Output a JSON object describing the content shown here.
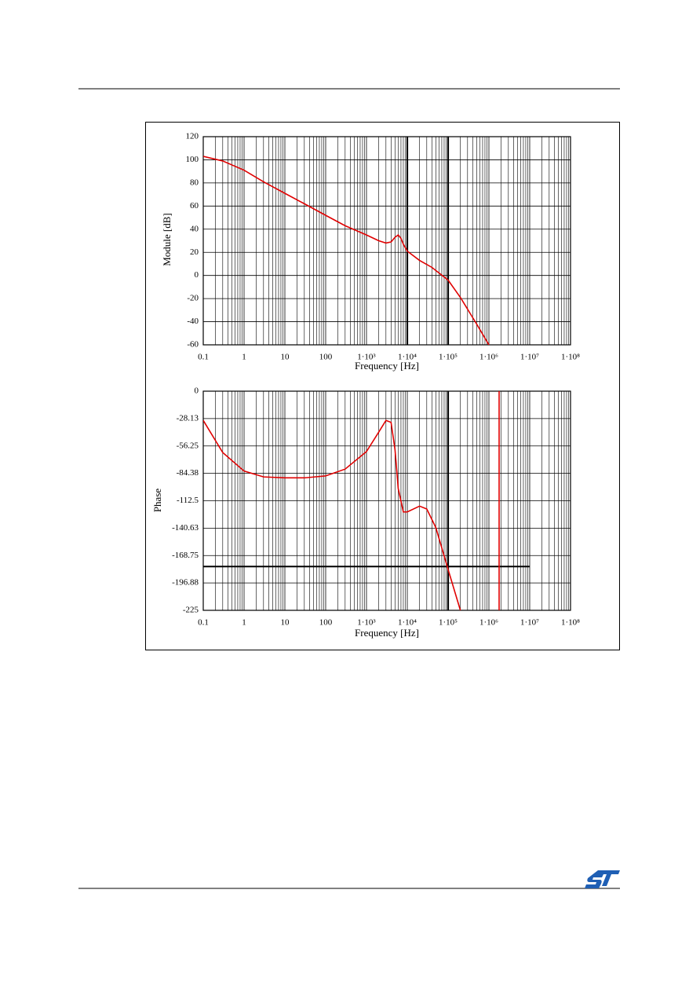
{
  "chart_data": [
    {
      "type": "line",
      "ylabel": "Module [dB]",
      "xlabel": "Frequency [Hz]",
      "log_x": true,
      "grid": true,
      "minor_grid": true,
      "xlim": [
        0.1,
        100000000
      ],
      "ylim": [
        -60,
        120
      ],
      "xticks": [
        0.1,
        1,
        10,
        100,
        {
          "value": 1000,
          "label": "1·10³"
        },
        {
          "value": 10000,
          "label": "1·10⁴"
        },
        {
          "value": 100000,
          "label": "1·10⁵"
        },
        {
          "value": 1000000,
          "label": "1·10⁶"
        },
        {
          "value": 10000000,
          "label": "1·10⁷"
        },
        {
          "value": 100000000,
          "label": "1·10⁸"
        }
      ],
      "yticks": [
        -60,
        -40,
        -20,
        0,
        20,
        40,
        60,
        80,
        100,
        120
      ],
      "emphasis_x": [
        10000,
        100000
      ],
      "x": [
        0.1,
        0.3,
        1,
        3,
        10,
        30,
        100,
        300,
        1000,
        2000,
        3000,
        4000,
        5000,
        6000,
        7000,
        8000,
        10000,
        20000,
        40000,
        100000,
        200000,
        500000,
        1000000
      ],
      "series": [
        {
          "color": "#e00000",
          "values": [
            103,
            99,
            91,
            81,
            71,
            62,
            52,
            43,
            35,
            30,
            28,
            29,
            33,
            35,
            32,
            27,
            21,
            13,
            7,
            -4,
            -19,
            -42,
            -60
          ]
        }
      ]
    },
    {
      "type": "line",
      "ylabel": "Phase",
      "xlabel": "Frequency [Hz]",
      "log_x": true,
      "grid": true,
      "minor_grid": true,
      "xlim": [
        0.1,
        100000000
      ],
      "ylim": [
        -225,
        0
      ],
      "xticks": [
        0.1,
        1,
        10,
        100,
        {
          "value": 1000,
          "label": "1·10³"
        },
        {
          "value": 10000,
          "label": "1·10⁴"
        },
        {
          "value": 100000,
          "label": "1·10⁵"
        },
        {
          "value": 1000000,
          "label": "1·10⁶"
        },
        {
          "value": 10000000,
          "label": "1·10⁷"
        },
        {
          "value": 100000000,
          "label": "1·10⁸"
        }
      ],
      "yticks": [
        -225,
        -196.88,
        -168.75,
        -140.63,
        -112.5,
        -84.38,
        -56.25,
        -28.13,
        0
      ],
      "emphasis_x": [
        100000
      ],
      "emphasis_y": [
        -180
      ],
      "x": [
        0.1,
        0.3,
        1,
        3,
        10,
        30,
        100,
        300,
        1000,
        2000,
        3000,
        4000,
        5000,
        6000,
        8000,
        10000,
        20000,
        30000,
        50000,
        100000,
        200000,
        1000000,
        1780000,
        1780000
      ],
      "series": [
        {
          "color": "#e00000",
          "values": [
            -30,
            -63,
            -82,
            -88,
            -89,
            -89,
            -87,
            -80,
            -62,
            -42,
            -30,
            -32,
            -60,
            -100,
            -124,
            -124,
            -118,
            -121,
            -140,
            -183,
            -225,
            null,
            -225,
            0
          ]
        }
      ]
    }
  ]
}
